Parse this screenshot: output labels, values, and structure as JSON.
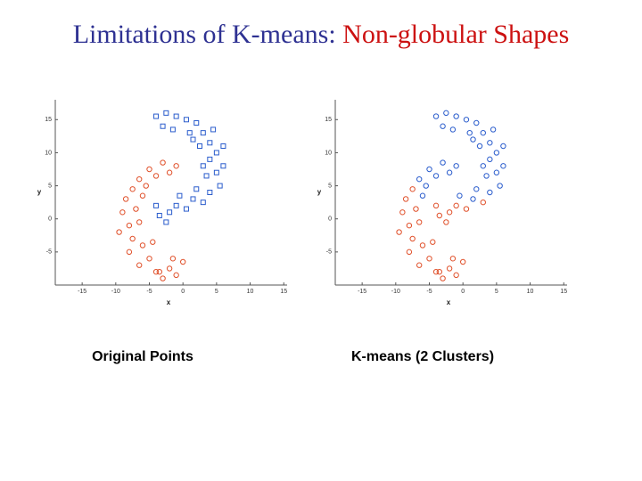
{
  "title_parts": [
    {
      "text": "Limitations of K-means: ",
      "color": "#2e3192"
    },
    {
      "text": "Non-globular Shapes",
      "color": "#cc1111"
    }
  ],
  "chart_data": [
    {
      "type": "scatter",
      "caption": "Original Points",
      "x_label": "x",
      "y_label": "y",
      "xlim": [
        -19,
        15.5
      ],
      "ylim": [
        -10,
        18
      ],
      "xticks": [
        -15,
        -10,
        -5,
        0,
        5,
        10,
        15
      ],
      "yticks": [
        15,
        10,
        5,
        0,
        -5
      ],
      "series": [
        {
          "color": "#2a5ccc",
          "marker": "square",
          "x": [
            -4,
            -2.5,
            -1,
            0.5,
            2,
            -3,
            -1.5,
            1,
            3,
            4,
            2.5,
            5,
            4,
            6,
            5,
            3.5,
            5.5,
            4,
            3,
            1.5,
            0.5,
            -1,
            -2,
            -3.5,
            -2.5,
            -4,
            -0.5,
            2,
            3,
            1.5,
            6,
            4.5
          ],
          "y": [
            15.5,
            16,
            15.5,
            15,
            14.5,
            14,
            13.5,
            13,
            13,
            11.5,
            11,
            10,
            9,
            8,
            7,
            6.5,
            5,
            4,
            2.5,
            3,
            1.5,
            2,
            1,
            0.5,
            -0.5,
            2,
            3.5,
            4.5,
            8,
            12,
            11,
            13.5
          ]
        },
        {
          "color": "#e0502a",
          "marker": "circle",
          "x": [
            -1,
            -3,
            -5,
            -6.5,
            -2,
            -4,
            -7.5,
            -8.5,
            -6,
            -9,
            -7,
            -8,
            -6.5,
            -7.5,
            -6,
            -8,
            -5,
            -6.5,
            -4,
            -3,
            -2,
            -1,
            0,
            -1.5,
            -4.5,
            -9.5,
            -5.5,
            -3.5
          ],
          "y": [
            8,
            8.5,
            7.5,
            6,
            7,
            6.5,
            4.5,
            3,
            3.5,
            1,
            1.5,
            -1,
            -0.5,
            -3,
            -4,
            -5,
            -6,
            -7,
            -8,
            -9,
            -7.5,
            -8.5,
            -6.5,
            -6,
            -3.5,
            -2,
            5,
            -8
          ]
        }
      ]
    },
    {
      "type": "scatter",
      "caption": "K-means (2 Clusters)",
      "x_label": "x",
      "y_label": "y",
      "xlim": [
        -19,
        15.5
      ],
      "ylim": [
        -10,
        18
      ],
      "xticks": [
        -15,
        -10,
        -5,
        0,
        5,
        10,
        15
      ],
      "yticks": [
        15,
        10,
        5,
        0,
        -5
      ],
      "series": [
        {
          "color": "#2a5ccc",
          "marker": "circle",
          "x": [
            -4,
            -2.5,
            -1,
            0.5,
            2,
            -3,
            -1.5,
            1,
            3,
            4,
            2.5,
            5,
            4,
            6,
            5,
            3.5,
            5.5,
            4,
            1.5,
            -0.5,
            2,
            3,
            1.5,
            6,
            4.5,
            -1,
            -3,
            -5,
            -6.5,
            -2,
            -4,
            -6,
            -5.5
          ],
          "y": [
            15.5,
            16,
            15.5,
            15,
            14.5,
            14,
            13.5,
            13,
            13,
            11.5,
            11,
            10,
            9,
            8,
            7,
            6.5,
            5,
            4,
            3,
            3.5,
            4.5,
            8,
            12,
            11,
            13.5,
            8,
            8.5,
            7.5,
            6,
            7,
            6.5,
            3.5,
            5
          ]
        },
        {
          "color": "#e0502a",
          "marker": "circle",
          "x": [
            3,
            0.5,
            -1,
            -2,
            -3.5,
            -2.5,
            -4,
            -7.5,
            -8.5,
            -9,
            -7,
            -8,
            -6.5,
            -7.5,
            -6,
            -8,
            -5,
            -6.5,
            -4,
            -3,
            -2,
            -1,
            0,
            -1.5,
            -4.5,
            -9.5,
            -3.5
          ],
          "y": [
            2.5,
            1.5,
            2,
            1,
            0.5,
            -0.5,
            2,
            4.5,
            3,
            1,
            1.5,
            -1,
            -0.5,
            -3,
            -4,
            -5,
            -6,
            -7,
            -8,
            -9,
            -7.5,
            -8.5,
            -6.5,
            -6,
            -3.5,
            -2,
            -8
          ]
        }
      ]
    }
  ]
}
